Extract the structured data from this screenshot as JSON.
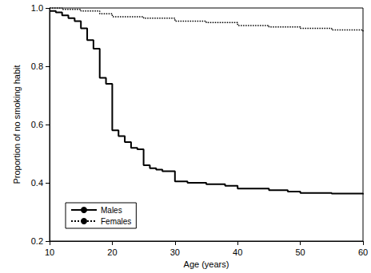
{
  "chart_data": {
    "type": "step",
    "x_label": "Age (years)",
    "y_label": "Proportion of no smoking habit",
    "xlim": [
      10,
      60
    ],
    "xticks": [
      10,
      20,
      30,
      40,
      50,
      60
    ],
    "ylim": [
      0.2,
      1
    ],
    "yticks": [
      0.2,
      0.4,
      0.6,
      0.8,
      {
        "value": 1,
        "label": "1.0"
      }
    ],
    "grid": false,
    "legend": "lower left",
    "series": [
      {
        "name": "Males",
        "color": "#000000",
        "line_style": "solid",
        "x": [
          10,
          11,
          12,
          13,
          14,
          15,
          16,
          17,
          18,
          19,
          20,
          21,
          22,
          23,
          24,
          25,
          26,
          27,
          28,
          30,
          32,
          35,
          38,
          40,
          45,
          48,
          50,
          55,
          60
        ],
        "values": [
          0.99,
          0.985,
          0.975,
          0.965,
          0.955,
          0.93,
          0.89,
          0.86,
          0.76,
          0.74,
          0.58,
          0.56,
          0.54,
          0.52,
          0.515,
          0.46,
          0.45,
          0.445,
          0.44,
          0.405,
          0.4,
          0.395,
          0.39,
          0.38,
          0.375,
          0.37,
          0.365,
          0.363,
          0.36
        ]
      },
      {
        "name": "Females",
        "color": "#000000",
        "line_style": "dotted",
        "x": [
          10,
          12,
          15,
          18,
          20,
          25,
          30,
          35,
          40,
          45,
          50,
          55,
          60
        ],
        "values": [
          1,
          0.995,
          0.99,
          0.98,
          0.97,
          0.965,
          0.955,
          0.95,
          0.94,
          0.935,
          0.93,
          0.925,
          0.92
        ]
      }
    ]
  }
}
